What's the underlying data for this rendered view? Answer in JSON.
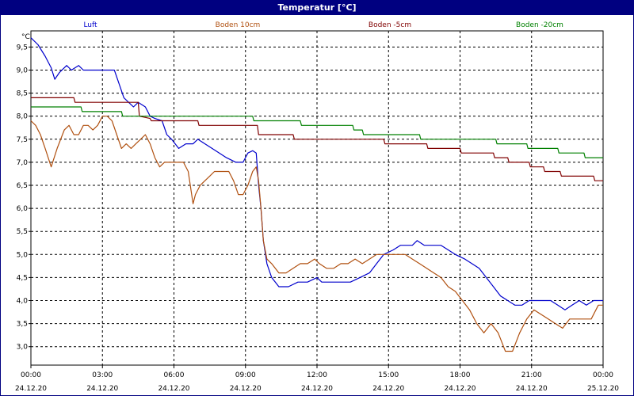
{
  "window": {
    "title": "Temperatur [°C]"
  },
  "chart_data": {
    "type": "line",
    "title": "Temperatur [°C]",
    "ylabel": "°C",
    "ylim": [
      2.6,
      9.85
    ],
    "xlim": [
      "2020-12-24 00:00",
      "2020-12-25 00:00"
    ],
    "grid": true,
    "legend_position": "top",
    "y_ticks": [
      "3,0",
      "3,5",
      "4,0",
      "4,5",
      "5,0",
      "5,5",
      "6,0",
      "6,5",
      "7,0",
      "7,5",
      "8,0",
      "8,5",
      "9,0",
      "9,5"
    ],
    "y_tick_values": [
      3.0,
      3.5,
      4.0,
      4.5,
      5.0,
      5.5,
      6.0,
      6.5,
      7.0,
      7.5,
      8.0,
      8.5,
      9.0,
      9.5
    ],
    "x_ticks": [
      {
        "time": "00:00",
        "date": "24.12.20"
      },
      {
        "time": "03:00",
        "date": "24.12.20"
      },
      {
        "time": "06:00",
        "date": "24.12.20"
      },
      {
        "time": "09:00",
        "date": "24.12.20"
      },
      {
        "time": "12:00",
        "date": "24.12.20"
      },
      {
        "time": "15:00",
        "date": "24.12.20"
      },
      {
        "time": "18:00",
        "date": "24.12.20"
      },
      {
        "time": "21:00",
        "date": "24.12.20"
      },
      {
        "time": "00:00",
        "date": "25.12.20"
      }
    ],
    "series": [
      {
        "name": "Luft",
        "color": "#0000cc",
        "points": [
          [
            0.0,
            9.7
          ],
          [
            0.3,
            9.55
          ],
          [
            0.6,
            9.3
          ],
          [
            0.85,
            9.05
          ],
          [
            1.0,
            8.8
          ],
          [
            1.2,
            8.95
          ],
          [
            1.5,
            9.1
          ],
          [
            1.7,
            9.0
          ],
          [
            2.0,
            9.1
          ],
          [
            2.2,
            9.0
          ],
          [
            2.5,
            9.0
          ],
          [
            2.8,
            9.0
          ],
          [
            3.2,
            9.0
          ],
          [
            3.5,
            9.0
          ],
          [
            3.7,
            8.7
          ],
          [
            3.9,
            8.4
          ],
          [
            4.1,
            8.3
          ],
          [
            4.3,
            8.2
          ],
          [
            4.5,
            8.3
          ],
          [
            4.8,
            8.2
          ],
          [
            5.0,
            8.0
          ],
          [
            5.2,
            7.95
          ],
          [
            5.5,
            7.9
          ],
          [
            5.7,
            7.6
          ],
          [
            5.9,
            7.5
          ],
          [
            6.2,
            7.3
          ],
          [
            6.5,
            7.4
          ],
          [
            6.8,
            7.4
          ],
          [
            7.0,
            7.5
          ],
          [
            7.3,
            7.4
          ],
          [
            7.6,
            7.3
          ],
          [
            7.9,
            7.2
          ],
          [
            8.2,
            7.1
          ],
          [
            8.6,
            7.0
          ],
          [
            8.9,
            7.0
          ],
          [
            9.1,
            7.2
          ],
          [
            9.3,
            7.25
          ],
          [
            9.45,
            7.2
          ],
          [
            9.55,
            6.5
          ],
          [
            9.65,
            6.0
          ],
          [
            9.75,
            5.3
          ],
          [
            9.9,
            4.8
          ],
          [
            10.1,
            4.5
          ],
          [
            10.4,
            4.3
          ],
          [
            10.8,
            4.3
          ],
          [
            11.2,
            4.4
          ],
          [
            11.6,
            4.4
          ],
          [
            12.0,
            4.5
          ],
          [
            12.2,
            4.4
          ],
          [
            12.6,
            4.4
          ],
          [
            13.0,
            4.4
          ],
          [
            13.4,
            4.4
          ],
          [
            13.8,
            4.5
          ],
          [
            14.2,
            4.6
          ],
          [
            14.5,
            4.8
          ],
          [
            14.8,
            5.0
          ],
          [
            15.2,
            5.1
          ],
          [
            15.5,
            5.2
          ],
          [
            15.8,
            5.2
          ],
          [
            16.0,
            5.2
          ],
          [
            16.2,
            5.3
          ],
          [
            16.5,
            5.2
          ],
          [
            16.8,
            5.2
          ],
          [
            17.2,
            5.2
          ],
          [
            17.5,
            5.1
          ],
          [
            17.8,
            5.0
          ],
          [
            18.2,
            4.9
          ],
          [
            18.5,
            4.8
          ],
          [
            18.8,
            4.7
          ],
          [
            19.1,
            4.5
          ],
          [
            19.4,
            4.3
          ],
          [
            19.7,
            4.1
          ],
          [
            20.0,
            4.0
          ],
          [
            20.3,
            3.9
          ],
          [
            20.6,
            3.9
          ],
          [
            20.9,
            4.0
          ],
          [
            21.2,
            4.0
          ],
          [
            21.5,
            4.0
          ],
          [
            21.8,
            4.0
          ],
          [
            22.1,
            3.9
          ],
          [
            22.4,
            3.8
          ],
          [
            22.7,
            3.9
          ],
          [
            23.0,
            4.0
          ],
          [
            23.3,
            3.9
          ],
          [
            23.6,
            4.0
          ],
          [
            24.0,
            4.0
          ]
        ]
      },
      {
        "name": "Boden 10cm",
        "color": "#b05010",
        "points": [
          [
            0.0,
            7.9
          ],
          [
            0.2,
            7.8
          ],
          [
            0.4,
            7.6
          ],
          [
            0.6,
            7.3
          ],
          [
            0.85,
            6.9
          ],
          [
            1.1,
            7.3
          ],
          [
            1.4,
            7.7
          ],
          [
            1.6,
            7.8
          ],
          [
            1.8,
            7.6
          ],
          [
            2.0,
            7.6
          ],
          [
            2.2,
            7.8
          ],
          [
            2.4,
            7.8
          ],
          [
            2.6,
            7.7
          ],
          [
            2.8,
            7.8
          ],
          [
            3.0,
            8.0
          ],
          [
            3.2,
            8.0
          ],
          [
            3.4,
            7.9
          ],
          [
            3.6,
            7.6
          ],
          [
            3.8,
            7.3
          ],
          [
            4.0,
            7.4
          ],
          [
            4.2,
            7.3
          ],
          [
            4.4,
            7.4
          ],
          [
            4.6,
            7.5
          ],
          [
            4.8,
            7.6
          ],
          [
            5.0,
            7.4
          ],
          [
            5.2,
            7.1
          ],
          [
            5.4,
            6.9
          ],
          [
            5.6,
            7.0
          ],
          [
            5.8,
            7.0
          ],
          [
            6.0,
            7.0
          ],
          [
            6.2,
            7.0
          ],
          [
            6.4,
            7.0
          ],
          [
            6.6,
            6.8
          ],
          [
            6.8,
            6.1
          ],
          [
            6.9,
            6.3
          ],
          [
            7.1,
            6.5
          ],
          [
            7.3,
            6.6
          ],
          [
            7.5,
            6.7
          ],
          [
            7.7,
            6.8
          ],
          [
            8.0,
            6.8
          ],
          [
            8.3,
            6.8
          ],
          [
            8.5,
            6.6
          ],
          [
            8.7,
            6.3
          ],
          [
            8.9,
            6.3
          ],
          [
            9.1,
            6.5
          ],
          [
            9.3,
            6.8
          ],
          [
            9.45,
            6.9
          ],
          [
            9.55,
            6.6
          ],
          [
            9.65,
            6.0
          ],
          [
            9.75,
            5.3
          ],
          [
            9.9,
            4.9
          ],
          [
            10.1,
            4.8
          ],
          [
            10.4,
            4.6
          ],
          [
            10.7,
            4.6
          ],
          [
            11.0,
            4.7
          ],
          [
            11.3,
            4.8
          ],
          [
            11.6,
            4.8
          ],
          [
            11.9,
            4.9
          ],
          [
            12.1,
            4.8
          ],
          [
            12.4,
            4.7
          ],
          [
            12.7,
            4.7
          ],
          [
            13.0,
            4.8
          ],
          [
            13.3,
            4.8
          ],
          [
            13.6,
            4.9
          ],
          [
            13.9,
            4.8
          ],
          [
            14.2,
            4.9
          ],
          [
            14.5,
            5.0
          ],
          [
            14.8,
            5.0
          ],
          [
            15.1,
            5.0
          ],
          [
            15.4,
            5.0
          ],
          [
            15.7,
            5.0
          ],
          [
            16.0,
            4.9
          ],
          [
            16.3,
            4.8
          ],
          [
            16.6,
            4.7
          ],
          [
            16.9,
            4.6
          ],
          [
            17.2,
            4.5
          ],
          [
            17.5,
            4.3
          ],
          [
            17.8,
            4.2
          ],
          [
            18.1,
            4.0
          ],
          [
            18.4,
            3.8
          ],
          [
            18.7,
            3.5
          ],
          [
            19.0,
            3.3
          ],
          [
            19.3,
            3.5
          ],
          [
            19.6,
            3.3
          ],
          [
            19.9,
            2.9
          ],
          [
            20.2,
            2.9
          ],
          [
            20.5,
            3.3
          ],
          [
            20.8,
            3.6
          ],
          [
            21.1,
            3.8
          ],
          [
            21.4,
            3.7
          ],
          [
            21.7,
            3.6
          ],
          [
            22.0,
            3.5
          ],
          [
            22.3,
            3.4
          ],
          [
            22.6,
            3.6
          ],
          [
            22.9,
            3.6
          ],
          [
            23.2,
            3.6
          ],
          [
            23.5,
            3.6
          ],
          [
            23.8,
            3.9
          ],
          [
            24.0,
            3.9
          ]
        ]
      },
      {
        "name": "Boden -5cm",
        "color": "#800000",
        "points": [
          [
            0.0,
            8.4
          ],
          [
            1.8,
            8.4
          ],
          [
            1.85,
            8.3
          ],
          [
            4.5,
            8.3
          ],
          [
            4.55,
            8.0
          ],
          [
            5.0,
            7.95
          ],
          [
            5.05,
            7.9
          ],
          [
            7.0,
            7.9
          ],
          [
            7.05,
            7.8
          ],
          [
            9.5,
            7.8
          ],
          [
            9.55,
            7.6
          ],
          [
            11.0,
            7.6
          ],
          [
            11.05,
            7.5
          ],
          [
            14.8,
            7.5
          ],
          [
            14.85,
            7.4
          ],
          [
            16.6,
            7.4
          ],
          [
            16.65,
            7.3
          ],
          [
            18.0,
            7.3
          ],
          [
            18.05,
            7.2
          ],
          [
            19.4,
            7.2
          ],
          [
            19.45,
            7.1
          ],
          [
            20.0,
            7.1
          ],
          [
            20.05,
            7.0
          ],
          [
            20.9,
            7.0
          ],
          [
            20.95,
            6.9
          ],
          [
            21.5,
            6.9
          ],
          [
            21.55,
            6.8
          ],
          [
            22.2,
            6.8
          ],
          [
            22.25,
            6.7
          ],
          [
            23.6,
            6.7
          ],
          [
            23.65,
            6.6
          ],
          [
            24.0,
            6.6
          ]
        ]
      },
      {
        "name": "Boden -20cm",
        "color": "#008000",
        "points": [
          [
            0.0,
            8.2
          ],
          [
            2.1,
            8.2
          ],
          [
            2.15,
            8.1
          ],
          [
            3.8,
            8.1
          ],
          [
            3.85,
            8.0
          ],
          [
            9.3,
            8.0
          ],
          [
            9.35,
            7.9
          ],
          [
            11.3,
            7.9
          ],
          [
            11.35,
            7.8
          ],
          [
            13.5,
            7.8
          ],
          [
            13.55,
            7.7
          ],
          [
            13.9,
            7.7
          ],
          [
            13.95,
            7.6
          ],
          [
            16.3,
            7.6
          ],
          [
            16.35,
            7.5
          ],
          [
            19.5,
            7.5
          ],
          [
            19.55,
            7.4
          ],
          [
            20.8,
            7.4
          ],
          [
            20.85,
            7.3
          ],
          [
            22.1,
            7.3
          ],
          [
            22.15,
            7.2
          ],
          [
            23.2,
            7.2
          ],
          [
            23.25,
            7.1
          ],
          [
            24.0,
            7.1
          ]
        ]
      }
    ]
  }
}
